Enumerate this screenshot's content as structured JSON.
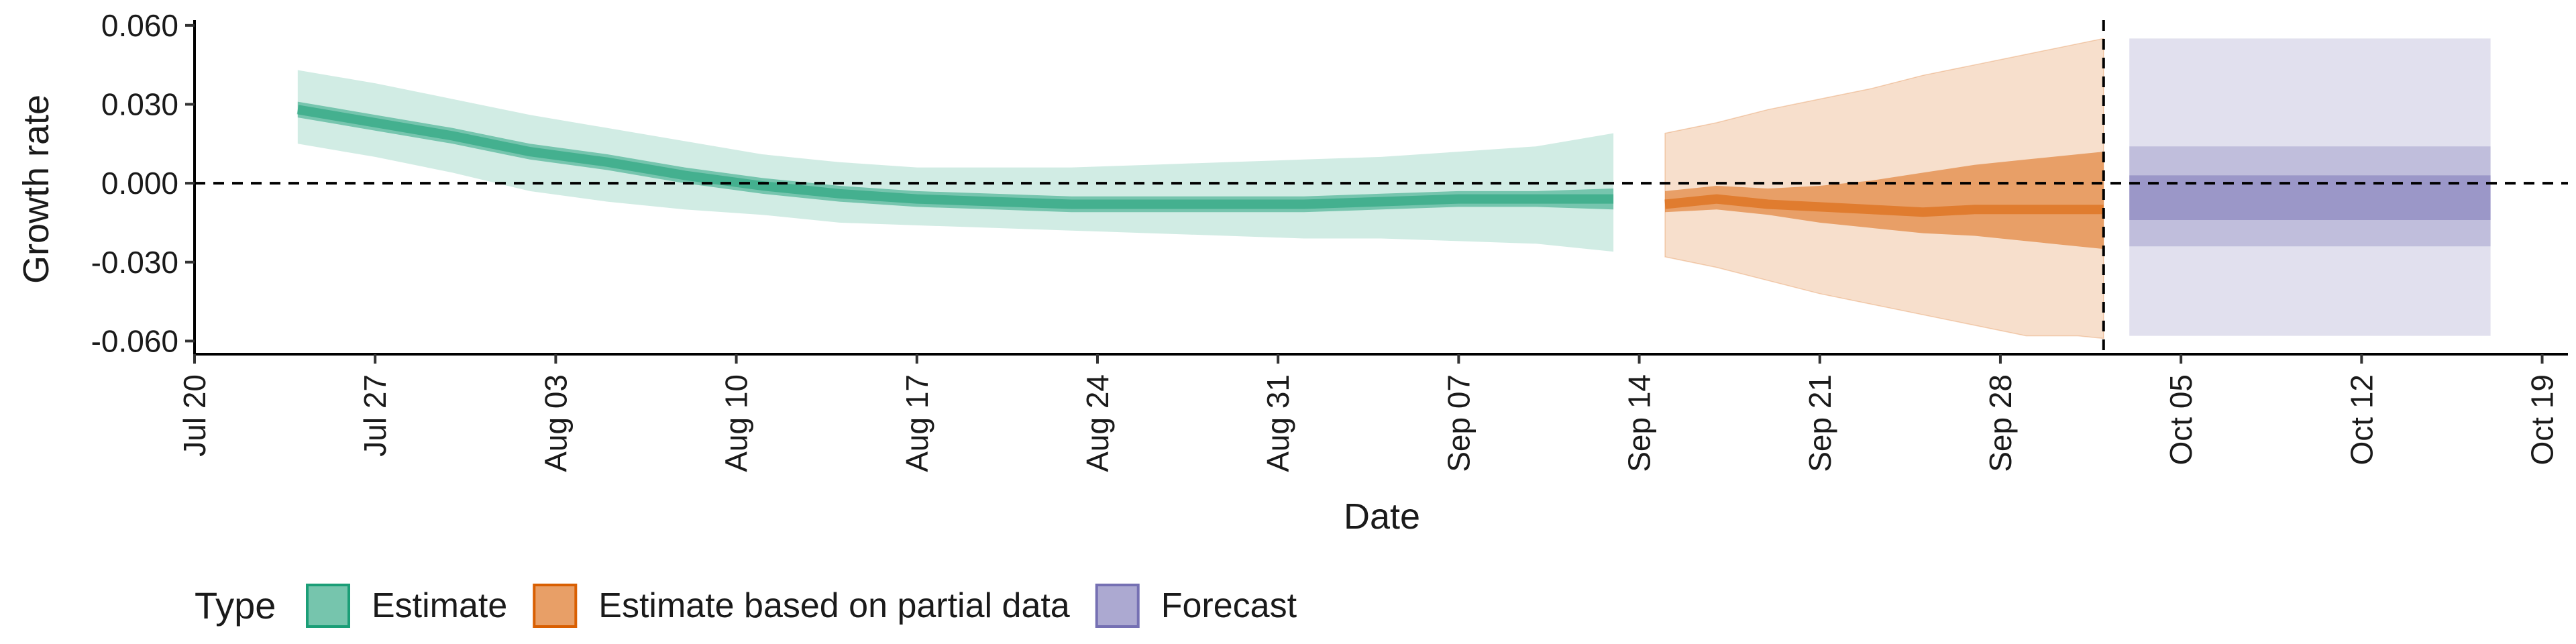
{
  "chart_data": {
    "type": "area",
    "title": "",
    "xlabel": "Date",
    "ylabel": "Growth rate",
    "x_axis_type": "date",
    "xlim": [
      "2020-07-20",
      "2020-10-20"
    ],
    "ylim": [
      -0.065,
      0.062
    ],
    "yticks": [
      -0.06,
      -0.03,
      0.0,
      0.03,
      0.06
    ],
    "ytick_labels": [
      "-0.060",
      "-0.030",
      "0.000",
      "0.030",
      "0.060"
    ],
    "xticks": [
      "2020-07-20",
      "2020-07-27",
      "2020-08-03",
      "2020-08-10",
      "2020-08-17",
      "2020-08-24",
      "2020-08-31",
      "2020-09-07",
      "2020-09-14",
      "2020-09-21",
      "2020-09-28",
      "2020-10-05",
      "2020-10-12",
      "2020-10-19"
    ],
    "xtick_labels": [
      "Jul 20",
      "Jul 27",
      "Aug 03",
      "Aug 10",
      "Aug 17",
      "Aug 24",
      "Aug 31",
      "Sep 07",
      "Sep 14",
      "Sep 21",
      "Sep 28",
      "Oct 05",
      "Oct 12",
      "Oct 19"
    ],
    "reference_lines": [
      {
        "axis": "y",
        "value": 0.0,
        "style": "dashed"
      },
      {
        "axis": "x",
        "value": "2020-10-02",
        "style": "dashed"
      }
    ],
    "grid": false,
    "legend": {
      "title": "Type",
      "position": "bottom-left"
    },
    "series": [
      {
        "name": "Estimate",
        "color": "#1b9e77",
        "dates": [
          "2020-07-24",
          "2020-07-27",
          "2020-07-30",
          "2020-08-02",
          "2020-08-05",
          "2020-08-08",
          "2020-08-11",
          "2020-08-14",
          "2020-08-17",
          "2020-08-20",
          "2020-08-23",
          "2020-08-26",
          "2020-08-29",
          "2020-09-01",
          "2020-09-04",
          "2020-09-07",
          "2020-09-10",
          "2020-09-13"
        ],
        "median": [
          0.028,
          0.023,
          0.018,
          0.012,
          0.008,
          0.003,
          -0.001,
          -0.004,
          -0.006,
          -0.007,
          -0.008,
          -0.008,
          -0.008,
          -0.008,
          -0.007,
          -0.006,
          -0.006,
          -0.006
        ],
        "lower_50": [
          0.025,
          0.02,
          0.015,
          0.009,
          0.005,
          0.0,
          -0.004,
          -0.007,
          -0.009,
          -0.01,
          -0.011,
          -0.011,
          -0.011,
          -0.011,
          -0.01,
          -0.009,
          -0.009,
          -0.01
        ],
        "upper_50": [
          0.031,
          0.026,
          0.021,
          0.015,
          0.011,
          0.006,
          0.002,
          -0.001,
          -0.003,
          -0.004,
          -0.005,
          -0.005,
          -0.005,
          -0.005,
          -0.004,
          -0.003,
          -0.003,
          -0.002
        ],
        "lower_90": [
          0.015,
          0.01,
          0.004,
          -0.003,
          -0.007,
          -0.01,
          -0.012,
          -0.015,
          -0.016,
          -0.017,
          -0.018,
          -0.019,
          -0.02,
          -0.021,
          -0.021,
          -0.022,
          -0.023,
          -0.026
        ],
        "upper_90": [
          0.043,
          0.038,
          0.032,
          0.026,
          0.021,
          0.016,
          0.011,
          0.008,
          0.006,
          0.006,
          0.006,
          0.007,
          0.008,
          0.009,
          0.01,
          0.012,
          0.014,
          0.019
        ]
      },
      {
        "name": "Estimate based on partial data",
        "color": "#d95f02",
        "dates": [
          "2020-09-15",
          "2020-09-17",
          "2020-09-19",
          "2020-09-21",
          "2020-09-23",
          "2020-09-25",
          "2020-09-27",
          "2020-09-29",
          "2020-10-01",
          "2020-10-02"
        ],
        "median": [
          -0.008,
          -0.006,
          -0.008,
          -0.009,
          -0.01,
          -0.011,
          -0.01,
          -0.01,
          -0.01,
          -0.01
        ],
        "lower_50": [
          -0.011,
          -0.01,
          -0.012,
          -0.015,
          -0.017,
          -0.019,
          -0.02,
          -0.022,
          -0.024,
          -0.025
        ],
        "upper_50": [
          -0.003,
          -0.001,
          -0.002,
          -0.001,
          0.001,
          0.004,
          0.007,
          0.009,
          0.011,
          0.012
        ],
        "lower_90": [
          -0.028,
          -0.032,
          -0.037,
          -0.042,
          -0.046,
          -0.05,
          -0.054,
          -0.058,
          -0.058,
          -0.059
        ],
        "upper_90": [
          0.019,
          0.023,
          0.028,
          0.032,
          0.036,
          0.041,
          0.045,
          0.049,
          0.053,
          0.055
        ]
      },
      {
        "name": "Forecast",
        "color": "#7570b3",
        "dates": [
          "2020-10-03",
          "2020-10-17"
        ],
        "median": [
          -0.005,
          -0.005
        ],
        "lower_50": [
          -0.014,
          -0.014
        ],
        "upper_50": [
          0.003,
          0.003
        ],
        "lower_90": [
          -0.024,
          -0.024
        ],
        "upper_90": [
          0.014,
          0.014
        ],
        "lower_outer": [
          -0.058,
          -0.058
        ],
        "upper_outer": [
          0.055,
          0.055
        ]
      }
    ]
  }
}
